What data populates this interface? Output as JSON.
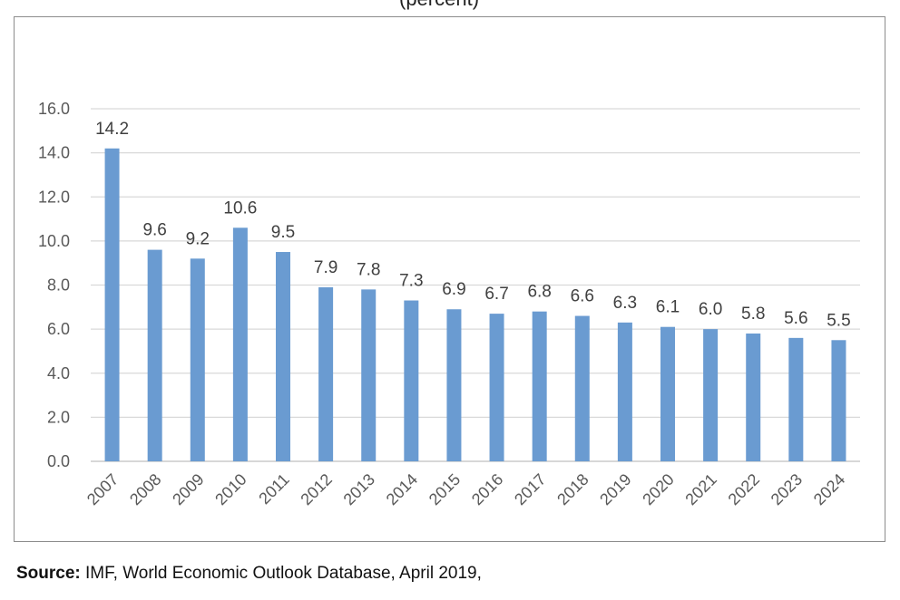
{
  "title_fragment": "(percent)",
  "source": {
    "label": "Source:",
    "text": " IMF, World Economic Outlook Database, April 2019,"
  },
  "colors": {
    "bar": "#6a9bd1",
    "grid": "#d9d9d9",
    "axis": "#bfbfbf",
    "text": "#595959"
  },
  "chart_data": {
    "type": "bar",
    "title": "",
    "xlabel": "",
    "ylabel": "",
    "ylim": [
      0,
      16
    ],
    "yticks": [
      "0.0",
      "2.0",
      "4.0",
      "6.0",
      "8.0",
      "10.0",
      "12.0",
      "14.0",
      "16.0"
    ],
    "grid": true,
    "categories": [
      "2007",
      "2008",
      "2009",
      "2010",
      "2011",
      "2012",
      "2013",
      "2014",
      "2015",
      "2016",
      "2017",
      "2018",
      "2019",
      "2020",
      "2021",
      "2022",
      "2023",
      "2024"
    ],
    "values": [
      14.2,
      9.6,
      9.2,
      10.6,
      9.5,
      7.9,
      7.8,
      7.3,
      6.9,
      6.7,
      6.8,
      6.6,
      6.3,
      6.1,
      6.0,
      5.8,
      5.6,
      5.5
    ],
    "value_labels": [
      "14.2",
      "9.6",
      "9.2",
      "10.6",
      "9.5",
      "7.9",
      "7.8",
      "7.3",
      "6.9",
      "6.7",
      "6.8",
      "6.6",
      "6.3",
      "6.1",
      "6.0",
      "5.8",
      "5.6",
      "5.5"
    ]
  }
}
